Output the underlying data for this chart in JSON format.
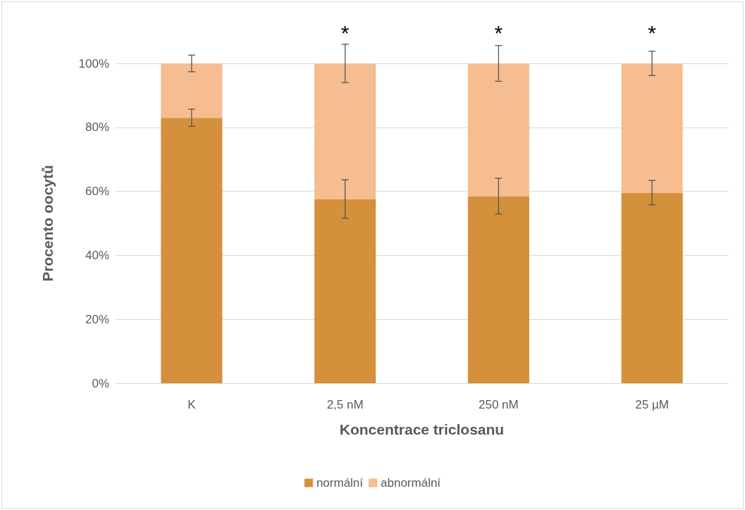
{
  "chart_data": {
    "type": "bar",
    "stacked": true,
    "xlabel": "Koncentrace triclosanu",
    "ylabel": "Procento oocytů",
    "categories": [
      "K",
      "2,5 nM",
      "250 nM",
      "25 µM"
    ],
    "series": [
      {
        "name": "normální",
        "color": "#d5903c",
        "values": [
          83.0,
          57.6,
          58.5,
          59.6
        ],
        "errors": [
          2.7,
          6.0,
          5.6,
          3.8
        ]
      },
      {
        "name": "abnormální",
        "color": "#f5bd90",
        "values": [
          17.0,
          42.4,
          41.5,
          40.4
        ],
        "errors": [
          2.6,
          6.0,
          5.6,
          3.8
        ]
      }
    ],
    "ylim": [
      0,
      100
    ],
    "yticks": [
      {
        "value": 0,
        "label": "0%"
      },
      {
        "value": 20,
        "label": "20%"
      },
      {
        "value": 40,
        "label": "40%"
      },
      {
        "value": 60,
        "label": "60%"
      },
      {
        "value": 80,
        "label": "80%"
      },
      {
        "value": 100,
        "label": "100%"
      }
    ],
    "grid": "y",
    "legend": "bottom",
    "annotations": [
      "*",
      "*",
      "*"
    ]
  }
}
